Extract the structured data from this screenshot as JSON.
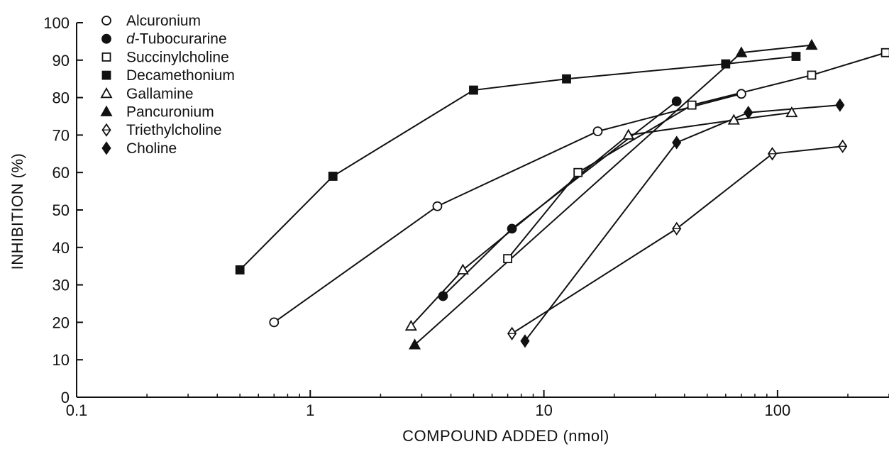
{
  "chart_data": {
    "type": "scatter",
    "xlabel": "COMPOUND ADDED (nmol)",
    "ylabel": "INHIBITION (%)",
    "x_scale": "log",
    "xlim": [
      0.1,
      300
    ],
    "ylim": [
      0,
      100
    ],
    "x_ticks": [
      0.1,
      1,
      10,
      100
    ],
    "x_tick_labels": [
      "0.1",
      "1",
      "10",
      "100"
    ],
    "y_ticks": [
      0,
      10,
      20,
      30,
      40,
      50,
      60,
      70,
      80,
      90,
      100
    ],
    "y_tick_labels": [
      "0",
      "10",
      "20",
      "30",
      "40",
      "50",
      "60",
      "70",
      "80",
      "90",
      "100"
    ],
    "grid": false,
    "legend_position": "top-left",
    "series": [
      {
        "name": "Alcuronium",
        "prefix": "",
        "name_italic": "",
        "marker": "circle-open",
        "x": [
          0.7,
          3.5,
          17,
          70
        ],
        "y": [
          20,
          51,
          71,
          81
        ]
      },
      {
        "name": "d-Tubocurarine",
        "prefix": "d",
        "name_italic": "-Tubocurarine",
        "marker": "circle-filled",
        "x": [
          3.7,
          7.3,
          37
        ],
        "y": [
          27,
          45,
          79
        ]
      },
      {
        "name": "Succinylcholine",
        "prefix": "",
        "name_italic": "",
        "marker": "square-open",
        "x": [
          7,
          14,
          43,
          140,
          290
        ],
        "y": [
          37,
          60,
          78,
          86,
          92
        ]
      },
      {
        "name": "Decamethonium",
        "prefix": "",
        "name_italic": "",
        "marker": "square-filled",
        "x": [
          0.5,
          1.25,
          5,
          12.5,
          60,
          120
        ],
        "y": [
          34,
          59,
          82,
          85,
          89,
          91
        ]
      },
      {
        "name": "Gallamine",
        "prefix": "",
        "name_italic": "",
        "marker": "triangle-open",
        "x": [
          2.7,
          4.5,
          23,
          65,
          115
        ],
        "y": [
          19,
          34,
          70,
          74,
          76
        ]
      },
      {
        "name": "Pancuronium",
        "prefix": "",
        "name_italic": "",
        "marker": "triangle-filled",
        "x": [
          2.8,
          70,
          140
        ],
        "y": [
          14,
          92,
          94
        ]
      },
      {
        "name": "Triethylcholine",
        "prefix": "",
        "name_italic": "",
        "marker": "diamond-open",
        "x": [
          7.3,
          37,
          95,
          190
        ],
        "y": [
          17,
          45,
          65,
          67
        ]
      },
      {
        "name": "Choline",
        "prefix": "",
        "name_italic": "",
        "marker": "diamond-filled",
        "x": [
          8.3,
          37,
          75,
          185
        ],
        "y": [
          15,
          68,
          76,
          78
        ]
      }
    ]
  }
}
